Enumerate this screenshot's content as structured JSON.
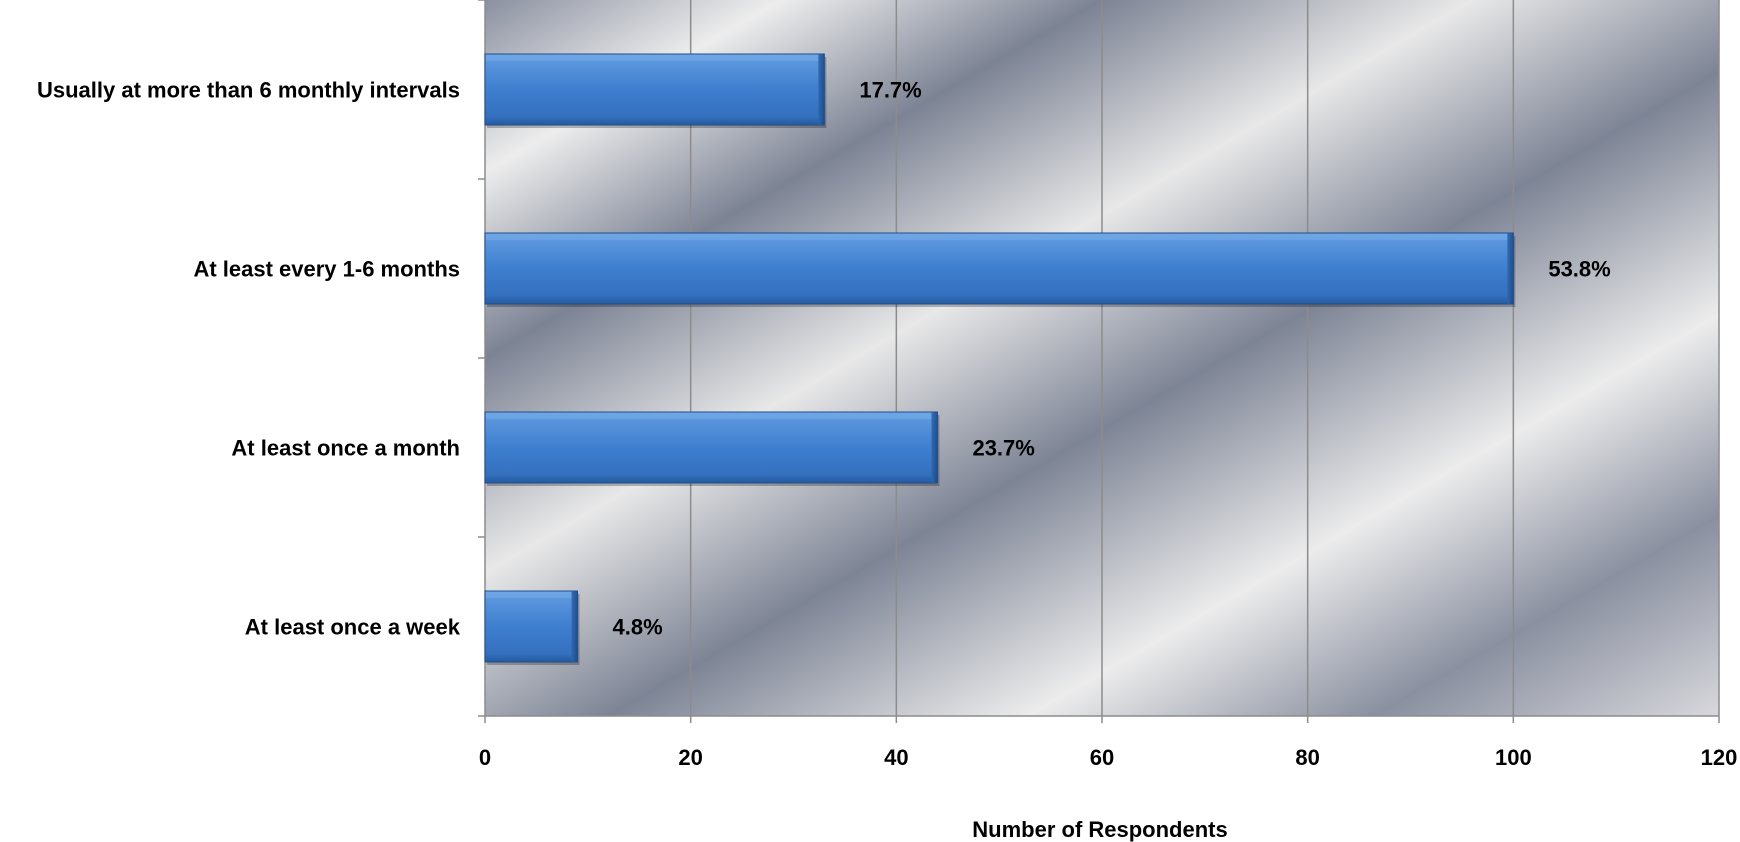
{
  "chart_data": {
    "type": "bar",
    "orientation": "horizontal",
    "categories": [
      "Usually at more than 6 monthly intervals",
      "At least every 1-6 months",
      "At least once a month",
      "At least once a week"
    ],
    "values": [
      33,
      100,
      44,
      9
    ],
    "data_labels": [
      "17.7%",
      "53.8%",
      "23.7%",
      "4.8%"
    ],
    "xlabel": "Number of Respondents",
    "ylabel": "",
    "xlim": [
      0,
      120
    ],
    "xticks": [
      "0",
      "20",
      "40",
      "60",
      "80",
      "100",
      "120"
    ],
    "grid": "vertical",
    "legend": "none",
    "colors": {
      "bar_fill": "#3F7FCF",
      "bar_highlight": "#6FA6E6",
      "bar_edge": "#1F4F8F",
      "gridline": "#8C8C8C",
      "plot_dark": "#7E8596",
      "plot_light": "#ECECEC"
    }
  }
}
